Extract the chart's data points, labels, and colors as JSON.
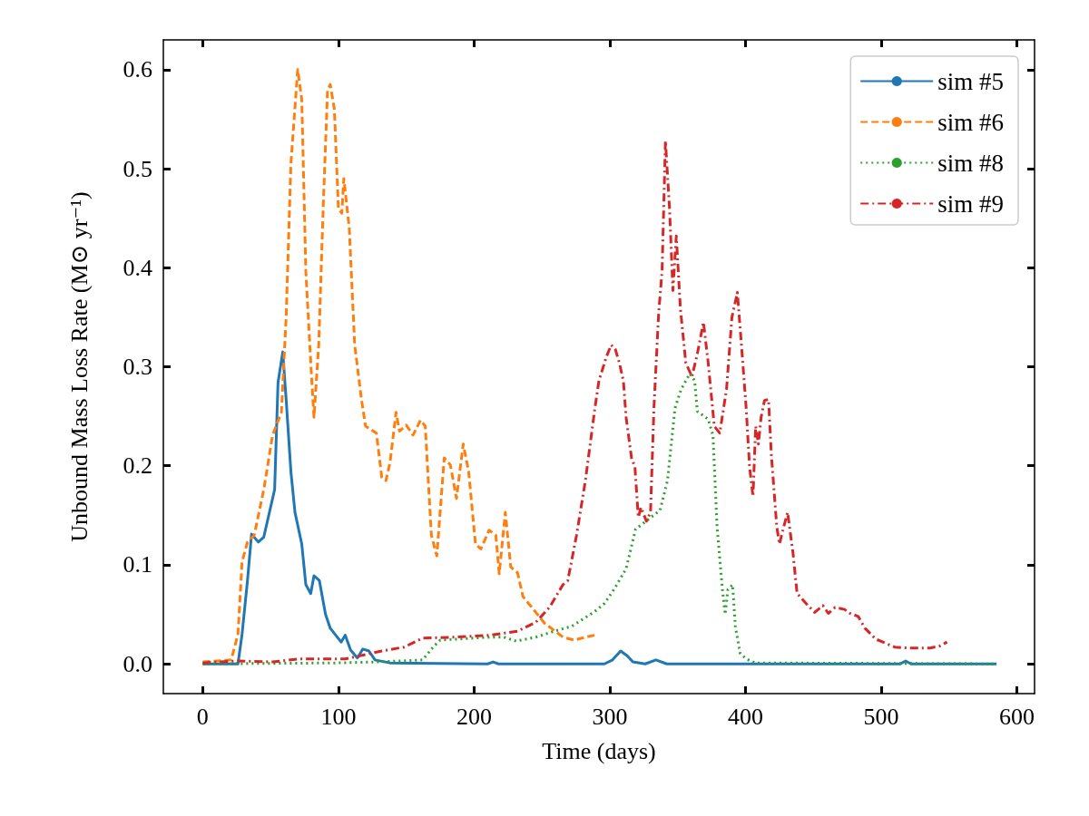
{
  "chart_data": {
    "type": "line",
    "xlabel": "Time (days)",
    "ylabel": "Unbound Mass Loss Rate (M⊙ yr⁻¹)",
    "xlim": [
      -29,
      613
    ],
    "xticks": [
      0,
      100,
      200,
      300,
      400,
      500,
      600
    ],
    "ylim": [
      -0.03,
      0.63
    ],
    "yticks": [
      {
        "value": 0,
        "label": "0.0"
      },
      {
        "value": 0.1,
        "label": "0.1"
      },
      {
        "value": 0.2,
        "label": "0.2"
      },
      {
        "value": 0.3,
        "label": "0.3"
      },
      {
        "value": 0.4,
        "label": "0.4"
      },
      {
        "value": 0.5,
        "label": "0.5"
      },
      {
        "value": 0.6,
        "label": "0.6"
      }
    ],
    "grid": false,
    "legend": "top right",
    "marker": "none",
    "series": [
      {
        "name": "sim #5",
        "color": "#1f77b4",
        "line_style": "solid",
        "x": [
          0,
          26,
          29,
          33,
          36,
          41,
          45,
          53,
          55.5,
          59,
          61.5,
          65,
          68,
          73,
          76,
          79.6,
          82,
          86,
          90.5,
          94,
          102,
          105,
          109,
          114,
          118,
          122.5,
          127,
          138,
          210,
          214,
          218,
          296,
          302,
          308,
          313,
          317,
          326,
          334,
          342,
          514,
          518,
          522,
          585
        ],
        "values": [
          0,
          0,
          0.03,
          0.084,
          0.131,
          0.123,
          0.128,
          0.176,
          0.284,
          0.315,
          0.267,
          0.194,
          0.153,
          0.121,
          0.08,
          0.071,
          0.089,
          0.084,
          0.05,
          0.036,
          0.022,
          0.029,
          0.014,
          0.006,
          0.015,
          0.013,
          0.004,
          0.001,
          0,
          0.002,
          0,
          0,
          0.004,
          0.013,
          0.008,
          0.002,
          0,
          0.004,
          0,
          0,
          0.003,
          0,
          0
        ]
      },
      {
        "name": "sim #6",
        "color": "#ff7f0e",
        "line_style": "dashed",
        "x": [
          0,
          21,
          26,
          29,
          33,
          38,
          45,
          51.5,
          58,
          61.5,
          65,
          70,
          73,
          76,
          80,
          82,
          85.5,
          89,
          92,
          94,
          97,
          100,
          102.5,
          104,
          108,
          112,
          117,
          120,
          128,
          132,
          135,
          138,
          142.5,
          145,
          150,
          155,
          160.5,
          164,
          168.5,
          172.5,
          178,
          182.5,
          187,
          192,
          196,
          201,
          205,
          211,
          216,
          218.5,
          223,
          227,
          232,
          236,
          245.5,
          252,
          265.5,
          274,
          282,
          289
        ],
        "values": [
          0.002,
          0.004,
          0.03,
          0.103,
          0.123,
          0.13,
          0.176,
          0.231,
          0.254,
          0.35,
          0.505,
          0.6,
          0.57,
          0.396,
          0.295,
          0.249,
          0.322,
          0.469,
          0.579,
          0.585,
          0.56,
          0.46,
          0.455,
          0.49,
          0.44,
          0.322,
          0.267,
          0.24,
          0.233,
          0.188,
          0.185,
          0.203,
          0.254,
          0.235,
          0.241,
          0.231,
          0.246,
          0.24,
          0.13,
          0.109,
          0.208,
          0.201,
          0.167,
          0.222,
          0.194,
          0.121,
          0.116,
          0.135,
          0.13,
          0.091,
          0.153,
          0.098,
          0.092,
          0.068,
          0.052,
          0.041,
          0.027,
          0.024,
          0.027,
          0.029
        ]
      },
      {
        "name": "sim #8",
        "color": "#2ca02c",
        "line_style": "dotted",
        "x": [
          0,
          100,
          128,
          162,
          170.5,
          175,
          199,
          212,
          222,
          231,
          245.5,
          259,
          272,
          289,
          296,
          303,
          312,
          319,
          337,
          342.5,
          348,
          352.5,
          359,
          362.5,
          364.5,
          372.5,
          376,
          379,
          383,
          385,
          387,
          390.5,
          392.5,
          396,
          400.5,
          407,
          585
        ],
        "values": [
          0,
          0.001,
          0.002,
          0.004,
          0.018,
          0.024,
          0.026,
          0.027,
          0.027,
          0.023,
          0.027,
          0.033,
          0.038,
          0.053,
          0.061,
          0.075,
          0.096,
          0.136,
          0.155,
          0.185,
          0.258,
          0.277,
          0.293,
          0.286,
          0.255,
          0.247,
          0.231,
          0.139,
          0.075,
          0.05,
          0.075,
          0.08,
          0.038,
          0.011,
          0.005,
          0.001,
          0
        ]
      },
      {
        "name": "sim #9",
        "color": "#d62728",
        "line_style": "dashdot",
        "x": [
          0,
          25,
          51.5,
          71.5,
          105,
          132,
          148.5,
          162,
          185,
          212,
          232,
          245.5,
          255.5,
          265.5,
          269,
          275.5,
          282,
          289,
          292,
          297.5,
          301,
          304,
          307,
          310,
          312,
          316,
          318.5,
          321,
          323,
          327,
          330,
          332.5,
          336,
          338.5,
          341,
          344,
          346.5,
          349,
          352,
          356,
          360.5,
          364.5,
          369,
          372.5,
          377,
          381,
          386,
          390,
          394,
          397,
          400.5,
          403,
          405.5,
          407.5,
          409.5,
          411.5,
          414,
          417,
          419,
          423,
          425,
          427,
          431,
          435,
          438,
          446,
          451,
          457,
          461,
          466,
          473,
          477,
          483,
          488,
          496,
          510,
          520,
          536,
          543,
          548.5
        ],
        "values": [
          0.001,
          0.003,
          0.002,
          0.005,
          0.005,
          0.013,
          0.017,
          0.026,
          0.027,
          0.029,
          0.033,
          0.042,
          0.057,
          0.08,
          0.084,
          0.13,
          0.185,
          0.258,
          0.286,
          0.31,
          0.322,
          0.318,
          0.304,
          0.286,
          0.249,
          0.208,
          0.199,
          0.148,
          0.158,
          0.144,
          0.153,
          0.258,
          0.354,
          0.396,
          0.528,
          0.46,
          0.377,
          0.432,
          0.359,
          0.304,
          0.29,
          0.313,
          0.345,
          0.304,
          0.24,
          0.233,
          0.277,
          0.35,
          0.375,
          0.322,
          0.258,
          0.199,
          0.169,
          0.24,
          0.222,
          0.249,
          0.266,
          0.267,
          0.212,
          0.139,
          0.121,
          0.132,
          0.153,
          0.112,
          0.071,
          0.059,
          0.052,
          0.059,
          0.051,
          0.057,
          0.055,
          0.051,
          0.048,
          0.036,
          0.025,
          0.017,
          0.016,
          0.016,
          0.018,
          0.022
        ]
      }
    ]
  }
}
